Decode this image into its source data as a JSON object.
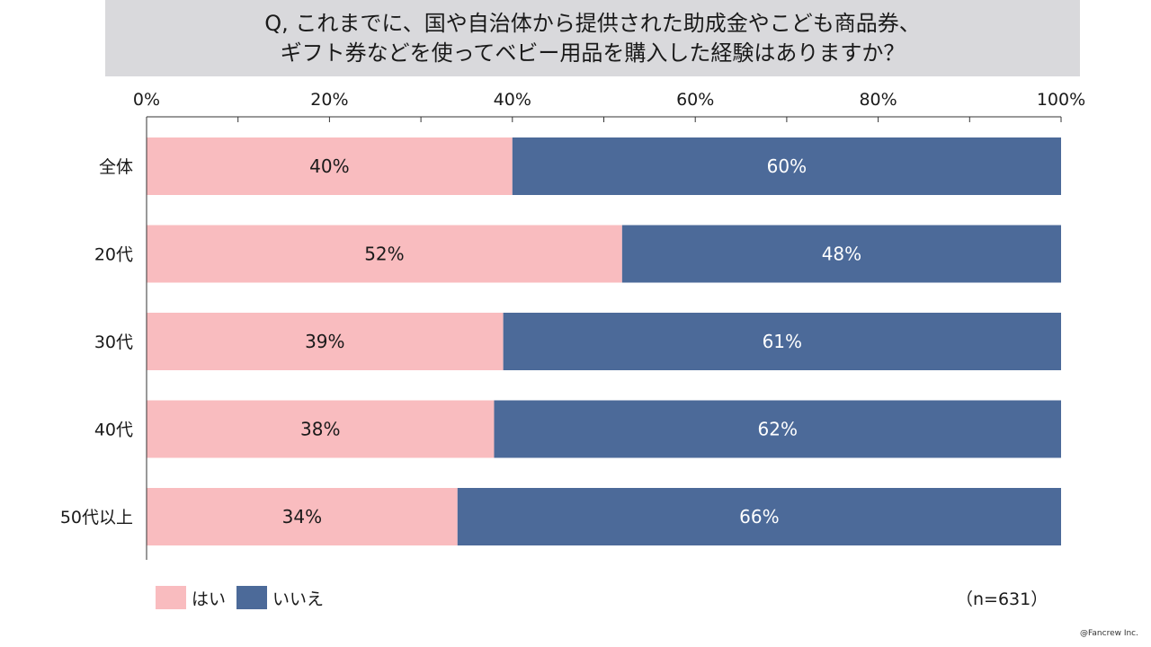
{
  "title": {
    "line1": "Q, これまでに、国や自治体から提供された助成金やこども商品券、",
    "line2": "ギフト券などを使ってベビー用品を購入した経験はありますか？"
  },
  "chart_data": {
    "type": "bar",
    "orientation": "horizontal",
    "stacked": true,
    "categories": [
      "全体",
      "20代",
      "30代",
      "40代",
      "50代以上"
    ],
    "series": [
      {
        "name": "はい",
        "values": [
          40,
          52,
          39,
          38,
          34
        ],
        "labels": [
          "40%",
          "52%",
          "39%",
          "38%",
          "34%"
        ],
        "color": "#f9bcbf"
      },
      {
        "name": "いいえ",
        "values": [
          60,
          48,
          61,
          62,
          66
        ],
        "labels": [
          "60%",
          "48%",
          "61%",
          "62%",
          "66%"
        ],
        "color": "#4c6a99"
      }
    ],
    "x_ticks": [
      "0%",
      "20%",
      "40%",
      "60%",
      "80%",
      "100%"
    ],
    "xlim": [
      0,
      100
    ],
    "legend_position": "bottom-left"
  },
  "sample_size": "（n=631）",
  "credit": "@Fancrew Inc."
}
